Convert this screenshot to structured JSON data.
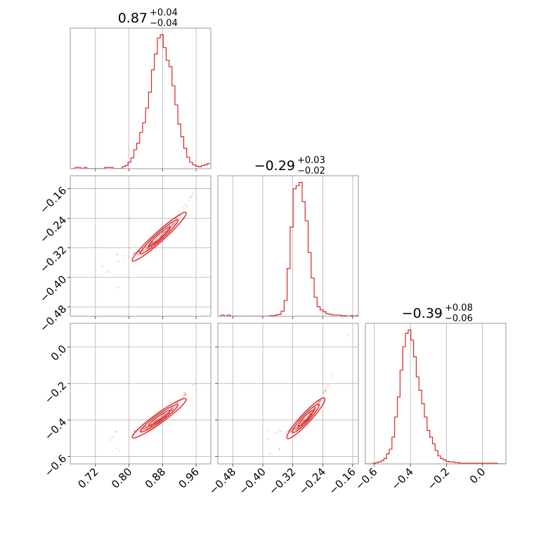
{
  "chart_data": {
    "type": "corner",
    "color": "#d62728",
    "grid": true,
    "parameters": [
      {
        "title_value": "0.87",
        "title_plus": "+0.04",
        "title_minus": "−0.04",
        "xlim": [
          0.66,
          0.995
        ],
        "ticks": [
          0.72,
          0.8,
          0.88,
          0.96
        ],
        "tick_labels": [
          "0.72",
          "0.80",
          "0.88",
          "0.96"
        ],
        "hist_centers": [
          0.668,
          0.675,
          0.682,
          0.689,
          0.696,
          0.703,
          0.71,
          0.717,
          0.724,
          0.731,
          0.738,
          0.745,
          0.752,
          0.759,
          0.766,
          0.773,
          0.78,
          0.787,
          0.794,
          0.801,
          0.808,
          0.815,
          0.822,
          0.829,
          0.836,
          0.843,
          0.85,
          0.857,
          0.864,
          0.871,
          0.878,
          0.885,
          0.892,
          0.899,
          0.906,
          0.913,
          0.92,
          0.927,
          0.934,
          0.941,
          0.948,
          0.955,
          0.962,
          0.969,
          0.976,
          0.983,
          0.99
        ],
        "hist_counts": [
          0,
          2,
          2,
          0,
          2,
          0,
          0,
          0,
          0,
          0,
          0,
          2,
          2,
          2,
          0,
          0,
          0,
          3,
          5,
          10,
          17,
          30,
          40,
          57,
          72,
          95,
          120,
          155,
          180,
          205,
          210,
          190,
          170,
          160,
          130,
          100,
          70,
          50,
          32,
          18,
          10,
          6,
          4,
          3,
          5,
          6,
          8
        ]
      },
      {
        "title_value": "−0.29",
        "title_plus": "+0.03",
        "title_minus": "−0.02",
        "xlim": [
          -0.52,
          -0.145
        ],
        "ticks": [
          -0.48,
          -0.4,
          -0.32,
          -0.24,
          -0.16
        ],
        "tick_labels": [
          "−0.48",
          "−0.40",
          "−0.32",
          "−0.24",
          "−0.16"
        ],
        "hist_centers": [
          -0.515,
          -0.507,
          -0.499,
          -0.491,
          -0.483,
          -0.475,
          -0.467,
          -0.459,
          -0.451,
          -0.443,
          -0.435,
          -0.427,
          -0.419,
          -0.411,
          -0.403,
          -0.395,
          -0.387,
          -0.379,
          -0.371,
          -0.363,
          -0.355,
          -0.347,
          -0.339,
          -0.331,
          -0.323,
          -0.315,
          -0.307,
          -0.299,
          -0.291,
          -0.283,
          -0.275,
          -0.267,
          -0.259,
          -0.251,
          -0.243,
          -0.235,
          -0.227,
          -0.219,
          -0.211,
          -0.203,
          -0.195,
          -0.187,
          -0.179,
          -0.171,
          -0.163,
          -0.155,
          -0.148
        ],
        "hist_counts": [
          0,
          2,
          0,
          2,
          0,
          0,
          0,
          0,
          0,
          0,
          0,
          0,
          0,
          0,
          0,
          0,
          0,
          1,
          1,
          2,
          3,
          8,
          25,
          75,
          140,
          200,
          205,
          210,
          180,
          150,
          100,
          60,
          30,
          15,
          10,
          7,
          4,
          3,
          2,
          2,
          2,
          1,
          1,
          0,
          1,
          0,
          1
        ]
      },
      {
        "title_value": "−0.39",
        "title_plus": "+0.08",
        "title_minus": "−0.06",
        "xlim": [
          -0.65,
          0.13
        ],
        "ticks": [
          -0.6,
          -0.4,
          -0.2,
          0.0
        ],
        "tick_labels": [
          "−0.6",
          "−0.4",
          "−0.2",
          "0.0"
        ],
        "hist_centers": [
          -0.645,
          -0.63,
          -0.615,
          -0.6,
          -0.585,
          -0.57,
          -0.555,
          -0.54,
          -0.525,
          -0.51,
          -0.495,
          -0.48,
          -0.465,
          -0.45,
          -0.435,
          -0.42,
          -0.405,
          -0.39,
          -0.375,
          -0.36,
          -0.345,
          -0.33,
          -0.315,
          -0.3,
          -0.285,
          -0.27,
          -0.255,
          -0.24,
          -0.225,
          -0.21,
          -0.195,
          -0.18,
          -0.165,
          -0.15,
          -0.135,
          -0.12,
          -0.105,
          -0.09,
          -0.075,
          -0.06,
          -0.045,
          -0.03,
          -0.015,
          0.0,
          0.015,
          0.03,
          0.045,
          0.06,
          0.075,
          0.09,
          0.105,
          0.12
        ],
        "hist_counts": [
          0,
          0,
          0,
          1,
          2,
          3,
          5,
          8,
          15,
          22,
          40,
          70,
          100,
          140,
          175,
          195,
          200,
          185,
          160,
          130,
          110,
          90,
          70,
          50,
          40,
          30,
          20,
          12,
          8,
          6,
          4,
          3,
          3,
          2,
          2,
          1,
          1,
          1,
          1,
          1,
          1,
          1,
          1,
          1,
          1,
          1,
          1,
          1,
          1,
          0,
          0,
          0
        ]
      }
    ],
    "pair_ylims": [
      [
        -0.505,
        -0.125
      ],
      [
        -0.64,
        0.13
      ]
    ],
    "pair_ticks": [
      [
        -0.16,
        -0.24,
        -0.32,
        -0.4,
        -0.48
      ],
      [
        0.0,
        -0.2,
        -0.4,
        -0.6
      ]
    ],
    "pair_tick_labels": [
      [
        "−0.16",
        "−0.24",
        "−0.32",
        "−0.40",
        "−0.48"
      ],
      [
        "0.0",
        "−0.2",
        "−0.4",
        "−0.6"
      ]
    ],
    "pairs": [
      {
        "row": 1,
        "col": 0,
        "slope": 1.02,
        "x_mean": 0.872,
        "y_mean": -0.29,
        "sx": 0.032,
        "sy": 0.035
      },
      {
        "row": 2,
        "col": 0,
        "slope": 1.65,
        "x_mean": 0.872,
        "y_mean": -0.39,
        "sx": 0.032,
        "sy": 0.06
      },
      {
        "row": 2,
        "col": 1,
        "slope": 2.2,
        "x_mean": -0.285,
        "y_mean": -0.39,
        "sx": 0.025,
        "sy": 0.06
      }
    ]
  }
}
